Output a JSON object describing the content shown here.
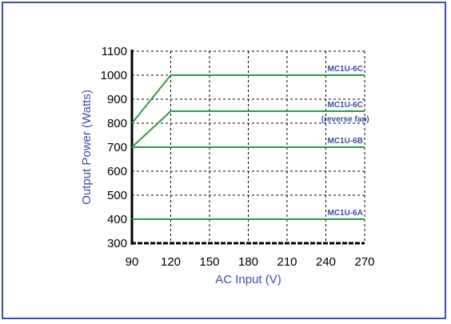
{
  "chart_data": {
    "type": "line",
    "title": "",
    "xlabel": "AC Input (V)",
    "ylabel": "Output Power (Watts)",
    "xlim": [
      90,
      270
    ],
    "ylim": [
      300,
      1100
    ],
    "xticks": [
      "90",
      "120",
      "150",
      "180",
      "210",
      "240",
      "270"
    ],
    "yticks": [
      "300",
      "400",
      "500",
      "600",
      "700",
      "800",
      "900",
      "1000",
      "1100"
    ],
    "grid": true,
    "legend": "none",
    "line_color": "#2e9a4a",
    "text_color": "#3b4fa0",
    "series": [
      {
        "x": [
          90,
          120,
          270
        ],
        "y": [
          800,
          1000,
          1000
        ]
      },
      {
        "x": [
          90,
          120,
          270
        ],
        "y": [
          700,
          850,
          850
        ]
      },
      {
        "x": [
          90,
          270
        ],
        "y": [
          700,
          700
        ]
      },
      {
        "x": [
          90,
          270
        ],
        "y": [
          400,
          400
        ]
      }
    ],
    "annotations": [
      {
        "lines": [
          "MC1U-6C"
        ],
        "x": 255,
        "y": 1000
      },
      {
        "lines": [
          "MC1U-6C",
          "(reverse fan)"
        ],
        "x": 255,
        "y": 850
      },
      {
        "lines": [
          "MC1U-6B"
        ],
        "x": 255,
        "y": 700
      },
      {
        "lines": [
          "MC1U-6A"
        ],
        "x": 255,
        "y": 400
      }
    ]
  }
}
